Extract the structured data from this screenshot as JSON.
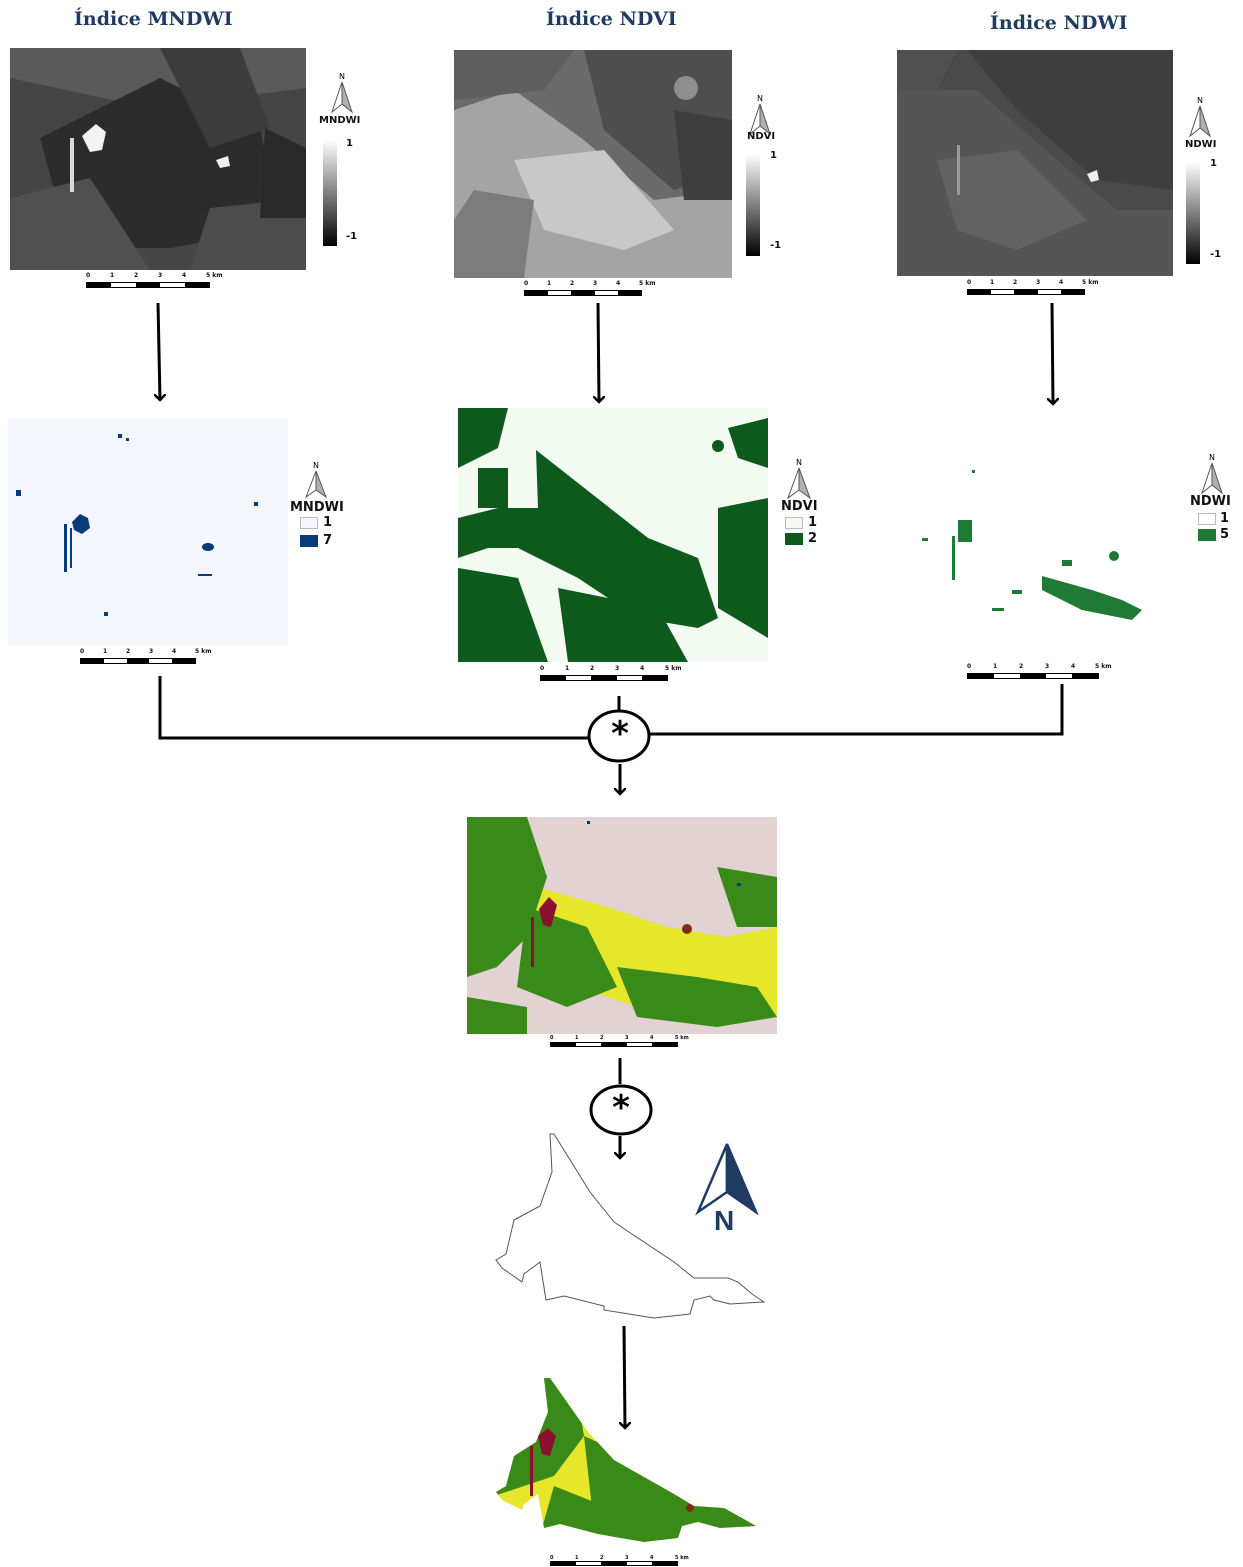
{
  "titles": {
    "mndwi": "Índice MNDWI",
    "ndvi": "Índice NDVI",
    "ndwi": "Índice NDWI"
  },
  "north_letter": "N",
  "legends": {
    "mndwi_index": {
      "title": "MNDWI",
      "max": "1",
      "min": "-1"
    },
    "ndvi_index": {
      "title": "NDVI",
      "max": "1",
      "min": "-1"
    },
    "ndwi_index": {
      "title": "NDWI",
      "max": "1",
      "min": "-1"
    },
    "mndwi_class": {
      "title": "MNDWI",
      "v1": "1",
      "v2": "7",
      "color": "#0b3a78"
    },
    "ndvi_class": {
      "title": "NDVI",
      "v1": "1",
      "v2": "2",
      "color": "#0d5a1c"
    },
    "ndwi_class": {
      "title": "NDWI",
      "v1": "1",
      "v2": "5",
      "color": "#1e7a35"
    }
  },
  "scale": {
    "ticks": [
      "0",
      "1",
      "2",
      "3",
      "4",
      "5 km"
    ],
    "ticks_small": [
      "0",
      "1",
      "2",
      "3",
      "4",
      "5 km"
    ]
  },
  "operator": "*",
  "colors": {
    "title": "#1f3b63",
    "water": "#0b3a78",
    "vegetation": "#0d5a1c",
    "ndwi_green": "#1e7a35",
    "classified_bg": "#e2d2d2",
    "classified_yellow": "#e6e62a",
    "classified_green": "#3a8a1a",
    "classified_red": "#8a1030",
    "north_arrow": "#1f3b63"
  }
}
